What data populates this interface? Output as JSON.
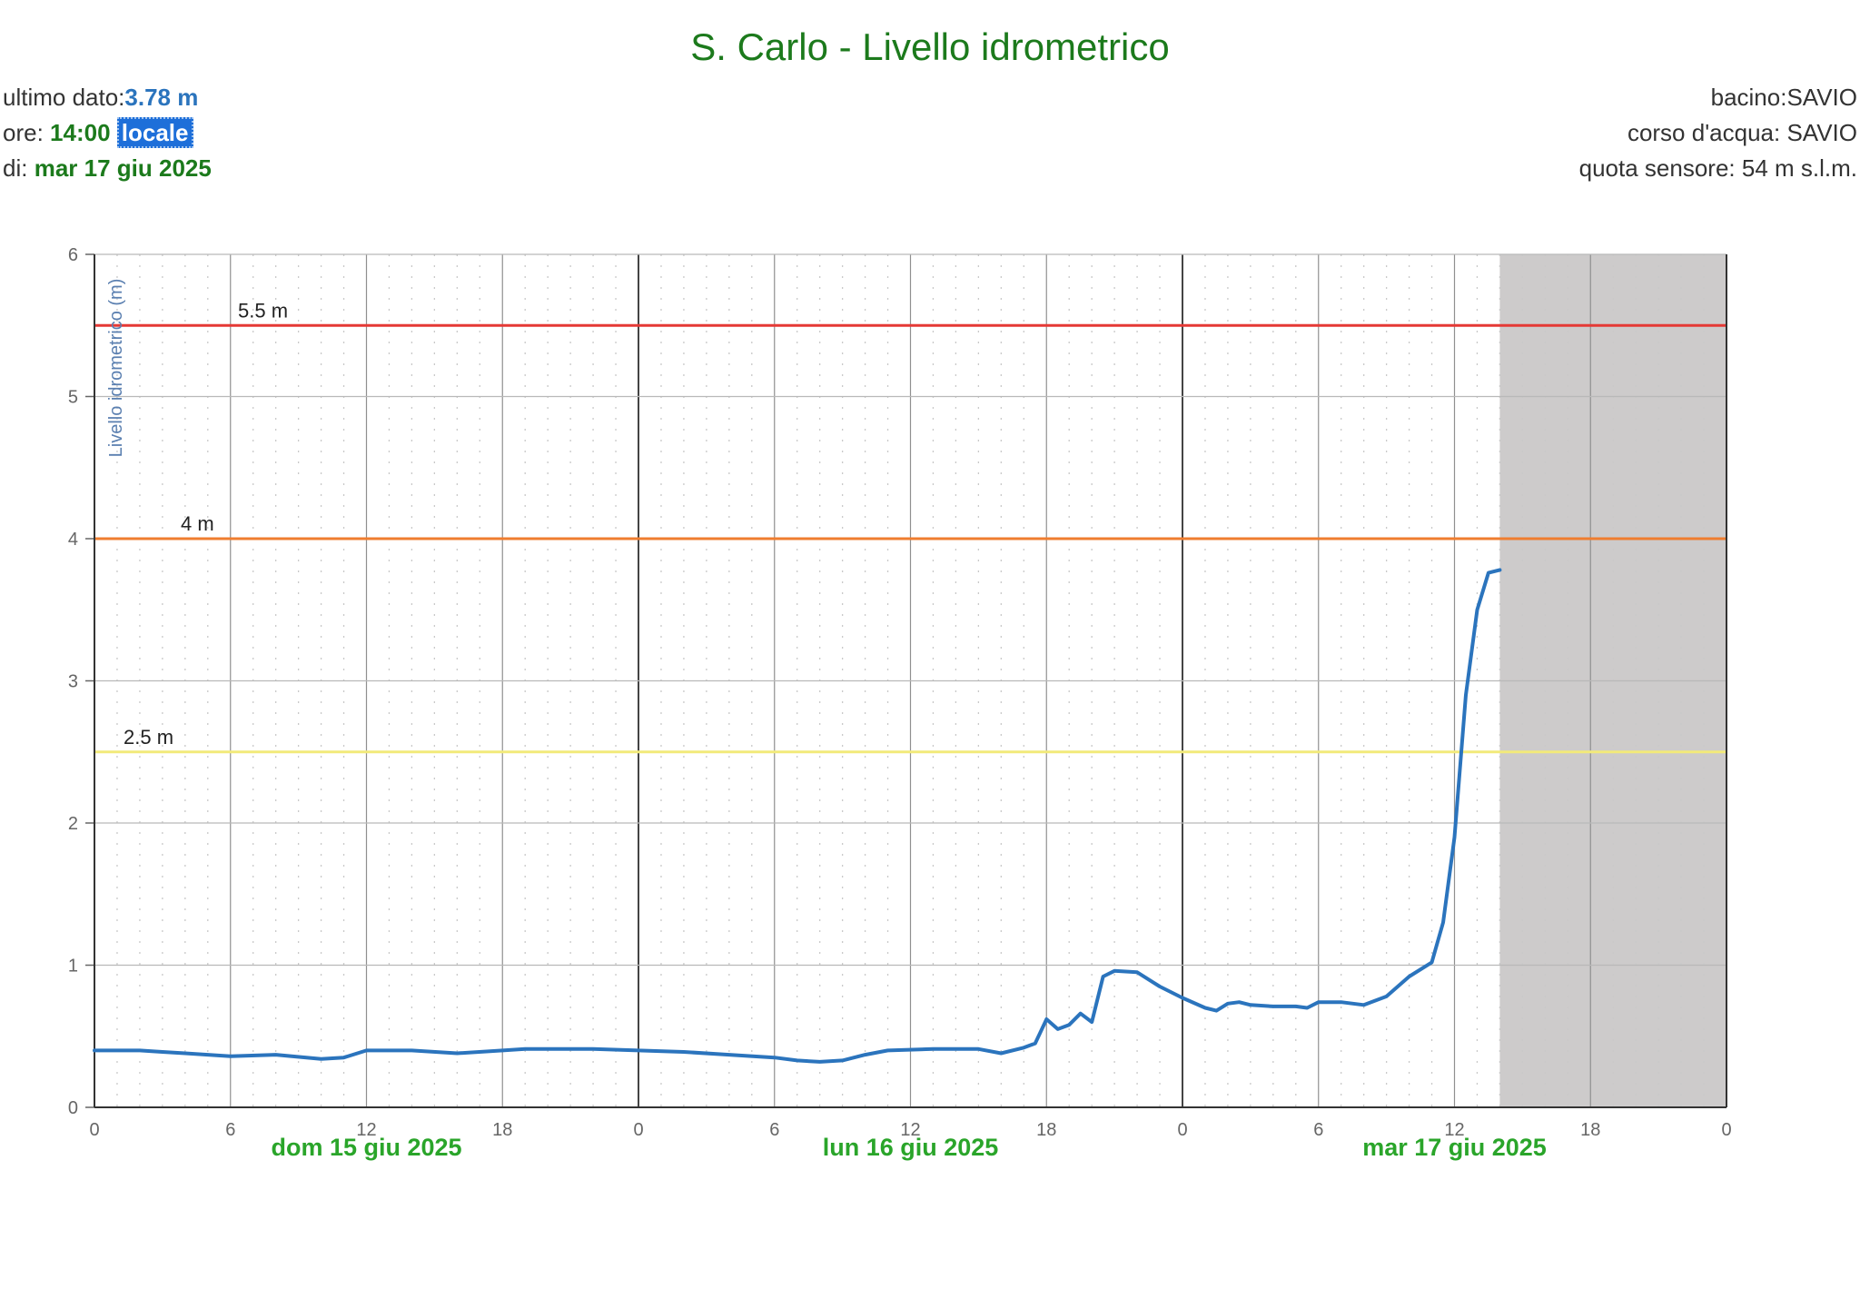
{
  "header": {
    "title": "S. Carlo - Livello idrometrico",
    "ultimo_label": "ultimo dato:",
    "ultimo_value": "3.78 m",
    "ore_label": "ore:",
    "ore_value": "14:00",
    "ore_badge": "locale",
    "di_label": "di:",
    "di_value": "mar 17 giu 2025",
    "bacino": "bacino:SAVIO",
    "corso": "corso d'acqua: SAVIO",
    "quota": "quota sensore: 54 m s.l.m."
  },
  "colors": {
    "series": "#2b74bd",
    "threshold_red": "#e53935",
    "threshold_orange": "#ef7d2f",
    "threshold_yellow": "#f2ea7a",
    "date_labels": "#2aa52a",
    "forecast_area": "#cdcbcb"
  },
  "chart_data": {
    "type": "line",
    "title": "S. Carlo - Livello idrometrico",
    "xlabel": "",
    "ylabel": "Livello idrometrico (m)",
    "ylim": [
      0,
      6
    ],
    "xlim": [
      "2025-06-15 00:00",
      "2025-06-18 00:00"
    ],
    "grid": true,
    "yticks": [
      "0",
      "1",
      "2",
      "3",
      "4",
      "5",
      "6"
    ],
    "xticks": [
      "0",
      "6",
      "12",
      "18",
      "0",
      "6",
      "12",
      "18",
      "0",
      "6",
      "12",
      "18",
      "0"
    ],
    "date_labels": [
      "dom 15 giu 2025",
      "lun 16 giu 2025",
      "mar 17 giu 2025"
    ],
    "thresholds": [
      {
        "value": 5.5,
        "label": "5.5 m",
        "color": "#e53935"
      },
      {
        "value": 4.0,
        "label": "4 m",
        "color": "#ef7d2f"
      },
      {
        "value": 2.5,
        "label": "2.5 m",
        "color": "#f2ea7a"
      }
    ],
    "forecast_shade": {
      "from": "2025-06-17 14:00",
      "to": "2025-06-18 00:00"
    },
    "series": [
      {
        "x": [
          "2025-06-15 00:00",
          "2025-06-15 02:00",
          "2025-06-15 03:00",
          "2025-06-15 04:00",
          "2025-06-15 06:00",
          "2025-06-15 08:00",
          "2025-06-15 10:00",
          "2025-06-15 11:00",
          "2025-06-15 12:00",
          "2025-06-15 14:00",
          "2025-06-15 16:00",
          "2025-06-15 18:00",
          "2025-06-15 19:00",
          "2025-06-15 22:00",
          "2025-06-16 00:00",
          "2025-06-16 02:00",
          "2025-06-16 04:00",
          "2025-06-16 06:00",
          "2025-06-16 07:00",
          "2025-06-16 08:00",
          "2025-06-16 09:00",
          "2025-06-16 10:00",
          "2025-06-16 11:00",
          "2025-06-16 13:00",
          "2025-06-16 15:00",
          "2025-06-16 16:00",
          "2025-06-16 17:00",
          "2025-06-16 17:30",
          "2025-06-16 18:00",
          "2025-06-16 18:30",
          "2025-06-16 19:00",
          "2025-06-16 19:30",
          "2025-06-16 20:00",
          "2025-06-16 20:30",
          "2025-06-16 21:00",
          "2025-06-16 22:00",
          "2025-06-16 23:00",
          "2025-06-17 00:00",
          "2025-06-17 01:00",
          "2025-06-17 01:30",
          "2025-06-17 02:00",
          "2025-06-17 02:30",
          "2025-06-17 03:00",
          "2025-06-17 04:00",
          "2025-06-17 05:00",
          "2025-06-17 05:30",
          "2025-06-17 06:00",
          "2025-06-17 07:00",
          "2025-06-17 08:00",
          "2025-06-17 09:00",
          "2025-06-17 10:00",
          "2025-06-17 11:00",
          "2025-06-17 11:30",
          "2025-06-17 12:00",
          "2025-06-17 12:30",
          "2025-06-17 13:00",
          "2025-06-17 13:30",
          "2025-06-17 14:00"
        ],
        "values": [
          0.4,
          0.4,
          0.39,
          0.38,
          0.36,
          0.37,
          0.34,
          0.35,
          0.4,
          0.4,
          0.38,
          0.4,
          0.41,
          0.41,
          0.4,
          0.39,
          0.37,
          0.35,
          0.33,
          0.32,
          0.33,
          0.37,
          0.4,
          0.41,
          0.41,
          0.38,
          0.42,
          0.45,
          0.62,
          0.55,
          0.58,
          0.66,
          0.6,
          0.92,
          0.96,
          0.95,
          0.85,
          0.77,
          0.7,
          0.68,
          0.73,
          0.74,
          0.72,
          0.71,
          0.71,
          0.7,
          0.74,
          0.74,
          0.72,
          0.78,
          0.92,
          1.02,
          1.3,
          1.9,
          2.9,
          3.5,
          3.76,
          3.78
        ]
      }
    ]
  }
}
